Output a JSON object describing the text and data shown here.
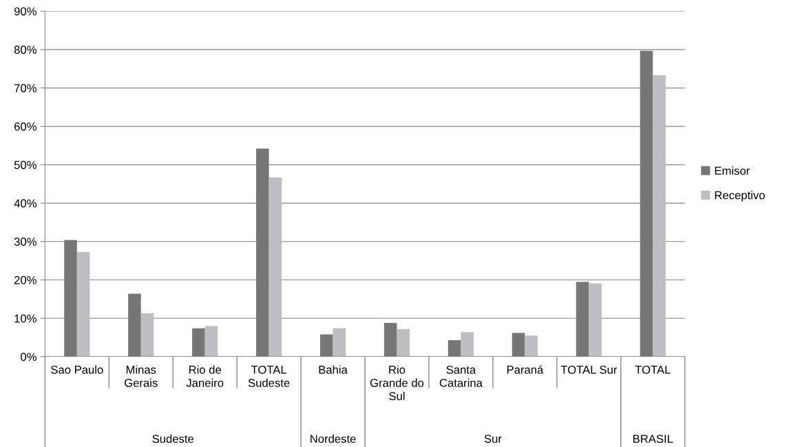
{
  "chart_data": {
    "type": "bar",
    "categories": [
      "Sao Paulo",
      "Minas\nGerais",
      "Rio de\nJaneiro",
      "TOTAL\nSudeste",
      "Bahia",
      "Rio\nGrande do\nSul",
      "Santa\nCatarina",
      "Paraná",
      "TOTAL Sur",
      "TOTAL"
    ],
    "series": [
      {
        "name": "Emisor",
        "color": "#767676",
        "values": [
          30.4,
          16.4,
          7.4,
          54.2,
          5.8,
          8.8,
          4.3,
          6.2,
          19.5,
          79.7
        ]
      },
      {
        "name": "Receptivo",
        "color": "#bdbdc2",
        "values": [
          27.3,
          11.3,
          8.0,
          46.7,
          7.4,
          7.2,
          6.4,
          5.5,
          19.1,
          73.3
        ]
      }
    ],
    "annotations": [
      "Sudeste",
      "Nordeste",
      "Sur",
      "BRASIL"
    ],
    "ylim": [
      0,
      90
    ],
    "yticks": [
      {
        "value": 0,
        "label": "0%"
      },
      {
        "value": 10,
        "label": "10%"
      },
      {
        "value": 20,
        "label": "20%"
      },
      {
        "value": 30,
        "label": "30%"
      },
      {
        "value": 40,
        "label": "40%"
      },
      {
        "value": 50,
        "label": "50%"
      },
      {
        "value": 60,
        "label": "60%"
      },
      {
        "value": 70,
        "label": "70%"
      },
      {
        "value": 80,
        "label": "80%"
      },
      {
        "value": 90,
        "label": "90%"
      }
    ],
    "grid": "y",
    "legend": "right"
  }
}
